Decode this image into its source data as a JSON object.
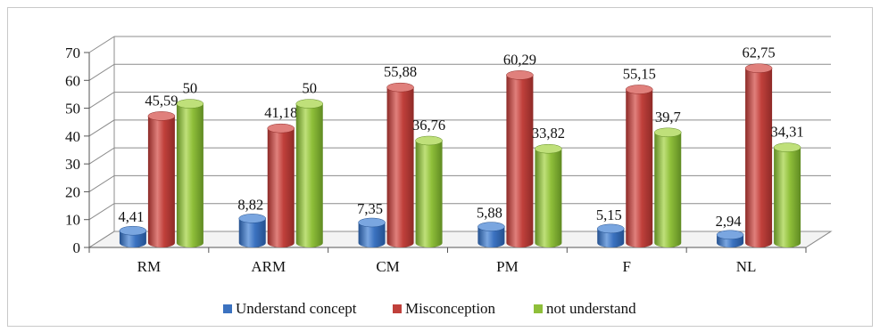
{
  "chart_data": {
    "type": "bar",
    "categories": [
      "RM",
      "ARM",
      "CM",
      "PM",
      "F",
      "NL"
    ],
    "series": [
      {
        "name": "Understand concept",
        "values": [
          4.41,
          8.82,
          7.35,
          5.88,
          5.15,
          2.94
        ],
        "labels": [
          "4,41",
          "8,82",
          "7,35",
          "5,88",
          "5,15",
          "2,94"
        ]
      },
      {
        "name": "Misconception",
        "values": [
          45.59,
          41.18,
          55.88,
          60.29,
          55.15,
          62.75
        ],
        "labels": [
          "45,59",
          "41,18",
          "55,88",
          "60,29",
          "55,15",
          "62,75"
        ]
      },
      {
        "name": "not understand",
        "values": [
          50,
          50,
          36.76,
          33.82,
          39.7,
          34.31
        ],
        "labels": [
          "50",
          "50",
          "36,76",
          "33,82",
          "39,7",
          "34,31"
        ]
      }
    ],
    "ylim": [
      0,
      70
    ],
    "yticks": [
      "0",
      "10",
      "20",
      "30",
      "40",
      "50",
      "60",
      "70"
    ],
    "grid": true,
    "legend": "bottom",
    "title": "",
    "xlabel": "",
    "ylabel": "",
    "colors": {
      "series": [
        "#3b72c0",
        "#c0403b",
        "#8fbf3a"
      ],
      "series_dark": [
        "#23508f",
        "#8e2a27",
        "#5f8a22"
      ],
      "series_light": [
        "#7aa6e0",
        "#e0807c",
        "#bfe07a"
      ]
    }
  }
}
